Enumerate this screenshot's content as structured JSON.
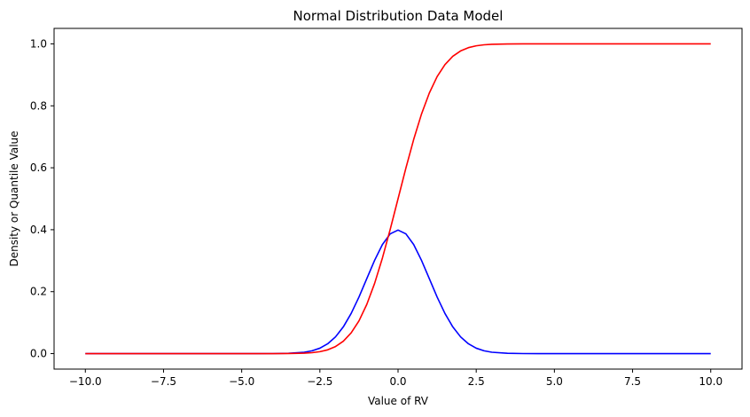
{
  "chart_data": {
    "type": "line",
    "title": "Normal Distribution Data Model",
    "xlabel": "Value of RV",
    "ylabel": "Density or Quantile Value",
    "xlim": [
      -10.0,
      10.0
    ],
    "ylim": [
      0.0,
      1.0
    ],
    "grid": false,
    "legend": "none",
    "x_ticks": [
      "-10.0",
      "-7.5",
      "-5.0",
      "-2.5",
      "0.0",
      "2.5",
      "5.0",
      "7.5",
      "10.0"
    ],
    "y_ticks": [
      "0.0",
      "0.2",
      "0.4",
      "0.6",
      "0.8",
      "1.0"
    ],
    "x": [
      -10.0,
      -9.0,
      -8.0,
      -7.0,
      -6.0,
      -5.0,
      -4.5,
      -4.0,
      -3.5,
      -3.0,
      -2.75,
      -2.5,
      -2.25,
      -2.0,
      -1.75,
      -1.5,
      -1.25,
      -1.0,
      -0.75,
      -0.5,
      -0.25,
      0.0,
      0.25,
      0.5,
      0.75,
      1.0,
      1.25,
      1.5,
      1.75,
      2.0,
      2.25,
      2.5,
      2.75,
      3.0,
      3.5,
      4.0,
      4.5,
      5.0,
      6.0,
      7.0,
      8.0,
      9.0,
      10.0
    ],
    "series": [
      {
        "color": "#0000ff",
        "values": [
          0.0,
          0.0,
          0.0,
          0.0,
          0.0,
          0.0,
          0.0,
          0.0001,
          0.0009,
          0.0044,
          0.0091,
          0.0175,
          0.0317,
          0.054,
          0.0863,
          0.1295,
          0.1826,
          0.242,
          0.3011,
          0.3521,
          0.3867,
          0.3989,
          0.3867,
          0.3521,
          0.3011,
          0.242,
          0.1826,
          0.1295,
          0.0863,
          0.054,
          0.0317,
          0.0175,
          0.0091,
          0.0044,
          0.0009,
          0.0001,
          0.0,
          0.0,
          0.0,
          0.0,
          0.0,
          0.0,
          0.0
        ]
      },
      {
        "color": "#ff0000",
        "values": [
          0.0,
          0.0,
          0.0,
          0.0,
          0.0,
          0.0,
          0.0,
          0.0,
          0.0002,
          0.0013,
          0.003,
          0.0062,
          0.0122,
          0.0228,
          0.0401,
          0.0668,
          0.1056,
          0.1587,
          0.2266,
          0.3085,
          0.4013,
          0.5,
          0.5987,
          0.6915,
          0.7734,
          0.8413,
          0.8944,
          0.9332,
          0.9599,
          0.9772,
          0.9878,
          0.9938,
          0.997,
          0.9987,
          0.9998,
          1.0,
          1.0,
          1.0,
          1.0,
          1.0,
          1.0,
          1.0,
          1.0
        ]
      }
    ]
  }
}
